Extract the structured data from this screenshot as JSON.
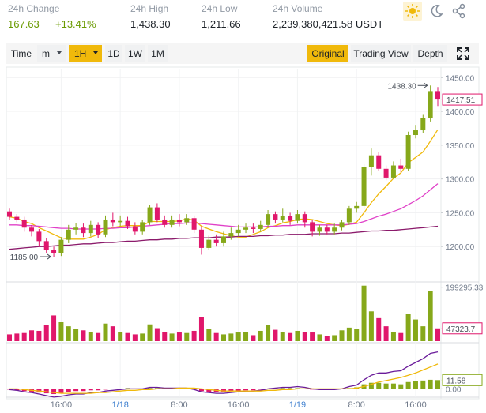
{
  "header": {
    "stats": [
      {
        "label": "24h Change",
        "value": "167.63",
        "change": "+13.41%"
      },
      {
        "label": "24h High",
        "value": "1,438.30"
      },
      {
        "label": "24h Low",
        "value": "1,211.66"
      },
      {
        "label": "24h Volume",
        "value": "2,239,380,421.58 USDT"
      }
    ]
  },
  "toolbar": {
    "left": [
      "Time",
      "m",
      "1H",
      "1D",
      "1W",
      "1M"
    ],
    "right": [
      "Original",
      "Trading View",
      "Depth"
    ]
  },
  "chart_data": {
    "type": "candlestick",
    "categories": [
      null,
      null,
      null,
      null,
      null,
      null,
      null,
      "16:00",
      null,
      null,
      null,
      null,
      null,
      null,
      null,
      "1/18",
      null,
      null,
      null,
      null,
      null,
      null,
      null,
      "8:00",
      null,
      null,
      null,
      null,
      null,
      null,
      null,
      "16:00",
      null,
      null,
      null,
      null,
      null,
      null,
      null,
      "1/19",
      null,
      null,
      null,
      null,
      null,
      null,
      null,
      "8:00",
      null,
      null,
      null,
      null,
      null,
      null,
      null,
      "16:00",
      null,
      null,
      null
    ],
    "open": [
      1252,
      1244,
      1240,
      1228,
      1222,
      1208,
      1195,
      1190,
      1210,
      1225,
      1228,
      1220,
      1232,
      1218,
      1240,
      1236,
      1238,
      1230,
      1222,
      1236,
      1258,
      1240,
      1232,
      1240,
      1236,
      1242,
      1225,
      1198,
      1210,
      1205,
      1215,
      1220,
      1225,
      1228,
      1226,
      1232,
      1248,
      1240,
      1245,
      1238,
      1248,
      1236,
      1222,
      1228,
      1222,
      1228,
      1236,
      1256,
      1260,
      1318,
      1335,
      1315,
      1302,
      1320,
      1315,
      1365,
      1372,
      1390,
      1430
    ],
    "high": [
      1256,
      1248,
      1244,
      1232,
      1226,
      1212,
      1200,
      1214,
      1232,
      1235,
      1234,
      1238,
      1236,
      1246,
      1250,
      1246,
      1244,
      1236,
      1240,
      1262,
      1264,
      1246,
      1246,
      1248,
      1248,
      1246,
      1230,
      1216,
      1218,
      1222,
      1228,
      1232,
      1234,
      1234,
      1238,
      1254,
      1252,
      1256,
      1250,
      1254,
      1252,
      1240,
      1232,
      1232,
      1234,
      1240,
      1260,
      1266,
      1322,
      1345,
      1340,
      1320,
      1326,
      1330,
      1370,
      1380,
      1396,
      1438.3,
      1436
    ],
    "low": [
      1240,
      1236,
      1222,
      1215,
      1200,
      1190,
      1185,
      1186,
      1205,
      1218,
      1214,
      1215,
      1212,
      1214,
      1230,
      1230,
      1226,
      1218,
      1218,
      1232,
      1236,
      1228,
      1228,
      1230,
      1232,
      1220,
      1188,
      1195,
      1200,
      1200,
      1210,
      1215,
      1220,
      1220,
      1222,
      1228,
      1234,
      1236,
      1232,
      1234,
      1228,
      1215,
      1216,
      1218,
      1218,
      1224,
      1232,
      1250,
      1255,
      1305,
      1312,
      1298,
      1300,
      1310,
      1312,
      1360,
      1368,
      1385,
      1408
    ],
    "close": [
      1244,
      1240,
      1228,
      1222,
      1208,
      1195,
      1190,
      1210,
      1225,
      1228,
      1220,
      1232,
      1218,
      1240,
      1236,
      1238,
      1230,
      1222,
      1236,
      1258,
      1240,
      1232,
      1240,
      1236,
      1242,
      1225,
      1198,
      1210,
      1205,
      1215,
      1220,
      1225,
      1228,
      1226,
      1232,
      1248,
      1240,
      1245,
      1238,
      1248,
      1236,
      1222,
      1228,
      1222,
      1228,
      1236,
      1256,
      1260,
      1318,
      1335,
      1315,
      1302,
      1320,
      1315,
      1365,
      1372,
      1390,
      1430,
      1417.51
    ],
    "up_color": "#86a81a",
    "down_color": "#e0176b",
    "ylim": [
      1150,
      1462
    ],
    "yticks": [
      {
        "value": 1450,
        "label": "1450.00"
      },
      {
        "value": 1400,
        "label": "1400.00"
      },
      {
        "value": 1350,
        "label": "1350.00"
      },
      {
        "value": 1300,
        "label": "1300.00"
      },
      {
        "value": 1250,
        "label": "1250.00"
      },
      {
        "value": 1200,
        "label": "1200.00"
      }
    ],
    "grid": true,
    "max_marker": {
      "value": 1438.3,
      "label": "1438.30"
    },
    "min_marker": {
      "value": 1185,
      "label": "1185.00"
    },
    "ma_series": [
      {
        "color": "#f0b90b",
        "values": [
          1244,
          1242,
          1237,
          1234,
          1228,
          1223,
          1218,
          1213,
          1211,
          1211,
          1211,
          1214,
          1218,
          1225,
          1228,
          1230,
          1231,
          1231,
          1231,
          1237,
          1237,
          1237,
          1237,
          1238,
          1241,
          1239,
          1230,
          1226,
          1222,
          1219,
          1216,
          1214,
          1214,
          1218,
          1222,
          1228,
          1231,
          1235,
          1237,
          1240,
          1241,
          1240,
          1237,
          1234,
          1232,
          1231,
          1233,
          1236,
          1250,
          1265,
          1278,
          1289,
          1301,
          1309,
          1324,
          1332,
          1340,
          1356,
          1373
        ]
      },
      {
        "color": "#e040c8",
        "values": [
          1232,
          1232,
          1231,
          1231,
          1230,
          1229,
          1228,
          1227,
          1227,
          1226,
          1226,
          1226,
          1226,
          1227,
          1227,
          1228,
          1228,
          1229,
          1230,
          1231,
          1232,
          1233,
          1234,
          1234,
          1235,
          1235,
          1234,
          1233,
          1232,
          1231,
          1230,
          1229,
          1229,
          1229,
          1229,
          1230,
          1230,
          1231,
          1231,
          1232,
          1232,
          1232,
          1232,
          1232,
          1232,
          1232,
          1233,
          1234,
          1237,
          1241,
          1245,
          1248,
          1252,
          1256,
          1262,
          1268,
          1275,
          1284,
          1293
        ]
      },
      {
        "color": "#8b1a6b",
        "values": [
          1196,
          1197,
          1198,
          1199,
          1200,
          1200,
          1201,
          1202,
          1202,
          1203,
          1204,
          1204,
          1205,
          1206,
          1206,
          1207,
          1208,
          1208,
          1209,
          1210,
          1210,
          1211,
          1211,
          1212,
          1212,
          1213,
          1213,
          1213,
          1214,
          1214,
          1214,
          1215,
          1215,
          1215,
          1216,
          1216,
          1217,
          1217,
          1218,
          1218,
          1218,
          1219,
          1219,
          1219,
          1219,
          1220,
          1220,
          1221,
          1222,
          1223,
          1223,
          1224,
          1224,
          1225,
          1226,
          1227,
          1228,
          1229,
          1230
        ]
      }
    ],
    "volume": {
      "values": [
        25000,
        28000,
        30000,
        40000,
        38000,
        60000,
        95000,
        70000,
        55000,
        45000,
        40000,
        35000,
        30000,
        65000,
        55000,
        35000,
        30000,
        25000,
        28000,
        62000,
        48000,
        35000,
        28000,
        32000,
        30000,
        38000,
        90000,
        45000,
        30000,
        25000,
        28000,
        32000,
        35000,
        22000,
        38000,
        60000,
        42000,
        35000,
        30000,
        38000,
        35000,
        32000,
        25000,
        20000,
        22000,
        40000,
        50000,
        45000,
        205000,
        110000,
        85000,
        55000,
        35000,
        30000,
        100000,
        80000,
        55000,
        185000,
        47323.7
      ],
      "ylim": [
        0,
        210000
      ],
      "yticks": [
        199295.33
      ]
    },
    "indicator": {
      "hist": [
        -1,
        -2,
        -3,
        -4,
        -5,
        -6,
        -7,
        -6,
        -4,
        -3,
        -3,
        -2,
        -2,
        -1,
        0,
        0,
        1,
        0,
        0,
        1,
        1,
        1,
        1,
        0,
        0,
        -1,
        -3,
        -4,
        -4,
        -4,
        -3,
        -3,
        -2,
        -2,
        -1,
        0,
        1,
        1,
        1,
        1,
        0,
        -1,
        -1,
        -1,
        -1,
        0,
        1,
        2,
        6,
        8,
        8,
        7,
        7,
        6,
        9,
        10,
        11,
        12,
        11.58
      ],
      "lines": [
        {
          "color": "#6a1b9a",
          "values": [
            -1,
            -2,
            -4,
            -5,
            -7,
            -9,
            -11,
            -10,
            -8,
            -7,
            -7,
            -5,
            -5,
            -3,
            -2,
            -1,
            0,
            0,
            0,
            2,
            2,
            1,
            1,
            1,
            1,
            -1,
            -4,
            -5,
            -6,
            -6,
            -5,
            -4,
            -3,
            -3,
            -2,
            0,
            1,
            2,
            2,
            3,
            2,
            0,
            -1,
            -1,
            -1,
            0,
            3,
            5,
            12,
            18,
            21,
            21,
            23,
            24,
            30,
            35,
            40,
            47,
            49
          ]
        },
        {
          "color": "#f0b90b",
          "values": [
            0,
            0,
            -1,
            -2,
            -3,
            -4,
            -5,
            -6,
            -6,
            -6,
            -6,
            -6,
            -5,
            -5,
            -4,
            -3,
            -2,
            -2,
            -1,
            -1,
            0,
            0,
            0,
            1,
            1,
            1,
            0,
            -1,
            -2,
            -3,
            -3,
            -3,
            -3,
            -3,
            -3,
            -2,
            -2,
            -1,
            -1,
            0,
            0,
            0,
            0,
            0,
            0,
            0,
            0,
            1,
            3,
            6,
            9,
            11,
            13,
            15,
            18,
            21,
            25,
            29,
            33
          ]
        }
      ],
      "ylim": [
        -8,
        58
      ],
      "yticks": [
        {
          "value": 0,
          "label": "0.00"
        }
      ]
    }
  }
}
